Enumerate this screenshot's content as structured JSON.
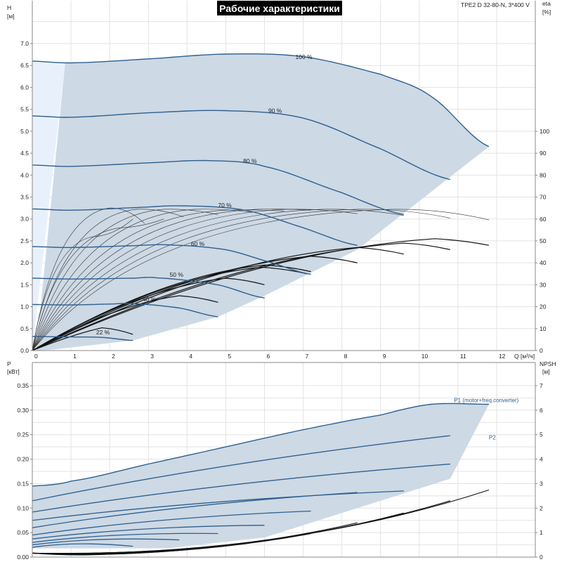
{
  "header": {
    "title": "Рабочие характеристики",
    "model": "TPE2 D 32-80-N, 3*400 V"
  },
  "colors": {
    "region_fill": "#cdd9e5",
    "region_light": "#e8f1fb",
    "speed_curve": "#2e5f8f",
    "system_curve": "#111111",
    "grid": "#e3e3e3",
    "axis": "#888888",
    "label_blue": "#2e5f8f"
  },
  "chart_data": [
    {
      "type": "line",
      "panel": "head",
      "xlabel": "Q [м³/ч]",
      "ylabel_left": "H",
      "ylabel_left_unit": "[м]",
      "ylabel_right": "eta",
      "ylabel_right_unit": "[%]",
      "xlim": [
        0,
        13
      ],
      "ylim": [
        0,
        7.5
      ],
      "ylim_right": [
        0,
        105
      ],
      "x_ticks": [
        "0",
        "1",
        "2",
        "3",
        "4",
        "5",
        "6",
        "7",
        "8",
        "9",
        "10",
        "11",
        "12"
      ],
      "y_ticks": [
        "0.0",
        "0.5",
        "1.0",
        "1.5",
        "2.0",
        "2.5",
        "3.0",
        "3.5",
        "4.0",
        "4.5",
        "5.0",
        "5.5",
        "6.0",
        "6.5",
        "7.0"
      ],
      "y_right_ticks": [
        "0",
        "10",
        "20",
        "30",
        "40",
        "50",
        "60",
        "70",
        "80",
        "90",
        "100"
      ],
      "grid": true,
      "speed_curves": [
        {
          "label": "100 %",
          "label_at": [
            6.8,
            6.65
          ],
          "x": [
            0,
            1,
            3,
            5,
            7,
            9,
            10.3,
            11.8
          ],
          "y": [
            6.6,
            6.56,
            6.65,
            6.76,
            6.7,
            6.3,
            5.8,
            4.65
          ]
        },
        {
          "label": "90 %",
          "label_at": [
            6.1,
            5.42
          ],
          "x": [
            0,
            1,
            3,
            5,
            7,
            9,
            10.8
          ],
          "y": [
            5.35,
            5.32,
            5.42,
            5.47,
            5.3,
            4.6,
            3.9
          ]
        },
        {
          "label": "80 %",
          "label_at": [
            5.45,
            4.28
          ],
          "x": [
            0,
            1,
            3,
            4.6,
            6,
            8,
            9.6
          ],
          "y": [
            4.23,
            4.2,
            4.28,
            4.33,
            4.2,
            3.6,
            3.1
          ]
        },
        {
          "label": "70 %",
          "label_at": [
            4.8,
            3.27
          ],
          "x": [
            0,
            1,
            2.7,
            3.9,
            5.5,
            7,
            8.4
          ],
          "y": [
            3.23,
            3.2,
            3.26,
            3.3,
            3.2,
            2.8,
            2.4
          ]
        },
        {
          "label": "60 %",
          "label_at": [
            4.1,
            2.39
          ],
          "x": [
            0,
            1,
            2.6,
            3.5,
            5,
            6.2,
            7.2
          ],
          "y": [
            2.37,
            2.35,
            2.39,
            2.41,
            2.3,
            2.0,
            1.74
          ]
        },
        {
          "label": "50 %",
          "label_at": [
            3.55,
            1.68
          ],
          "x": [
            0,
            1,
            2.6,
            3.2,
            4.8,
            6
          ],
          "y": [
            1.65,
            1.63,
            1.65,
            1.66,
            1.5,
            1.2
          ]
        },
        {
          "label": "40 %",
          "label_at": [
            2.85,
            1.12
          ],
          "x": [
            0,
            1,
            2,
            2.6,
            3.8,
            4.8
          ],
          "y": [
            1.05,
            1.04,
            1.06,
            1.07,
            0.97,
            0.77
          ]
        },
        {
          "label": "22 %",
          "label_at": [
            1.65,
            0.37
          ],
          "x": [
            0,
            1,
            1.8,
            2.6
          ],
          "y": [
            0.32,
            0.31,
            0.3,
            0.23
          ]
        }
      ],
      "system_curves_thin_count": 12,
      "system_curves_thick_count": 9,
      "efficiency_series_count": 9
    },
    {
      "type": "line",
      "panel": "power",
      "xlabel": "",
      "ylabel_left": "P",
      "ylabel_left_unit": "[кВт]",
      "ylabel_right": "NPSH",
      "ylabel_right_unit": "[м]",
      "xlim": [
        0,
        13
      ],
      "ylim": [
        0,
        0.375
      ],
      "ylim_right": [
        0,
        7.5
      ],
      "y_ticks": [
        "0.00",
        "0.05",
        "0.10",
        "0.15",
        "0.20",
        "0.25",
        "0.30",
        "0.35"
      ],
      "y_right_ticks": [
        "0",
        "1",
        "2",
        "3",
        "4",
        "5",
        "6",
        "7"
      ],
      "grid": true,
      "series": [
        {
          "name": "P1 (motor+freq.converter)",
          "x": [
            0,
            1,
            3,
            5,
            7,
            9,
            10.3,
            11.8
          ],
          "y": [
            0.145,
            0.155,
            0.19,
            0.225,
            0.26,
            0.29,
            0.312,
            0.312
          ]
        },
        {
          "name": "P2",
          "x": [
            0,
            2,
            4,
            6,
            8,
            10.8
          ],
          "y": [
            0.115,
            0.14,
            0.17,
            0.2,
            0.225,
            0.248
          ]
        }
      ],
      "P1_label_at": [
        10.9,
        0.316
      ],
      "P2_label_at": [
        11.8,
        0.24
      ]
    }
  ]
}
